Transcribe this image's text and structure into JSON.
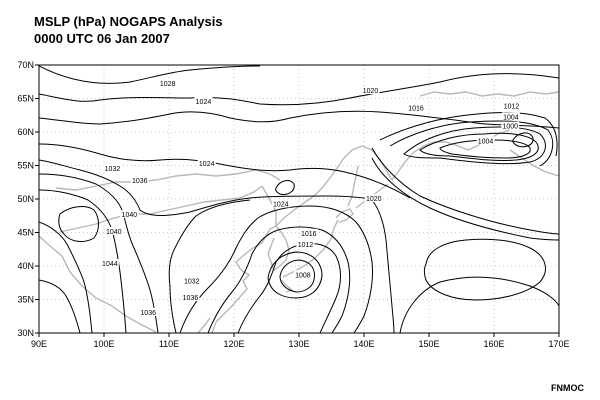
{
  "header": {
    "title_line1": "MSLP (hPa) NOGAPS Analysis",
    "title_line2": "0000 UTC  06 Jan 2007"
  },
  "footer": {
    "credit": "FNMOC"
  },
  "map": {
    "lon_range": [
      90,
      170
    ],
    "lat_range": [
      30,
      70
    ],
    "lon_ticks": [
      "90E",
      "100E",
      "110E",
      "120E",
      "130E",
      "140E",
      "150E",
      "160E",
      "170E"
    ],
    "lat_ticks": [
      "30N",
      "35N",
      "40N",
      "45N",
      "50N",
      "55N",
      "60N",
      "65N",
      "70N"
    ],
    "grid": "dotted",
    "coastline_color": "#b8b8b8",
    "isobar_labels": [
      {
        "text": "1028",
        "lon": 109.8,
        "lat": 67.2
      },
      {
        "text": "1024",
        "lon": 115.3,
        "lat": 64.5
      },
      {
        "text": "1020",
        "lon": 141.0,
        "lat": 66.1
      },
      {
        "text": "1016",
        "lon": 148.0,
        "lat": 63.5
      },
      {
        "text": "1012",
        "lon": 162.7,
        "lat": 63.8
      },
      {
        "text": "1004",
        "lon": 162.6,
        "lat": 62.2
      },
      {
        "text": "1000",
        "lon": 162.5,
        "lat": 60.8
      },
      {
        "text": "1004",
        "lon": 158.7,
        "lat": 58.6
      },
      {
        "text": "1032",
        "lon": 101.3,
        "lat": 54.5
      },
      {
        "text": "1036",
        "lon": 105.5,
        "lat": 52.7
      },
      {
        "text": "1024",
        "lon": 115.8,
        "lat": 55.2
      },
      {
        "text": "1024",
        "lon": 127.2,
        "lat": 49.2
      },
      {
        "text": "1020",
        "lon": 141.5,
        "lat": 50.0
      },
      {
        "text": "1040",
        "lon": 103.9,
        "lat": 47.6
      },
      {
        "text": "1040",
        "lon": 101.5,
        "lat": 45.1
      },
      {
        "text": "1016",
        "lon": 131.5,
        "lat": 44.8
      },
      {
        "text": "1012",
        "lon": 131.0,
        "lat": 43.1
      },
      {
        "text": "1044",
        "lon": 100.9,
        "lat": 40.3
      },
      {
        "text": "1032",
        "lon": 113.5,
        "lat": 37.7
      },
      {
        "text": "1008",
        "lon": 130.6,
        "lat": 38.6
      },
      {
        "text": "1036",
        "lon": 113.3,
        "lat": 35.2
      },
      {
        "text": "1036",
        "lon": 106.8,
        "lat": 33.0
      }
    ]
  }
}
